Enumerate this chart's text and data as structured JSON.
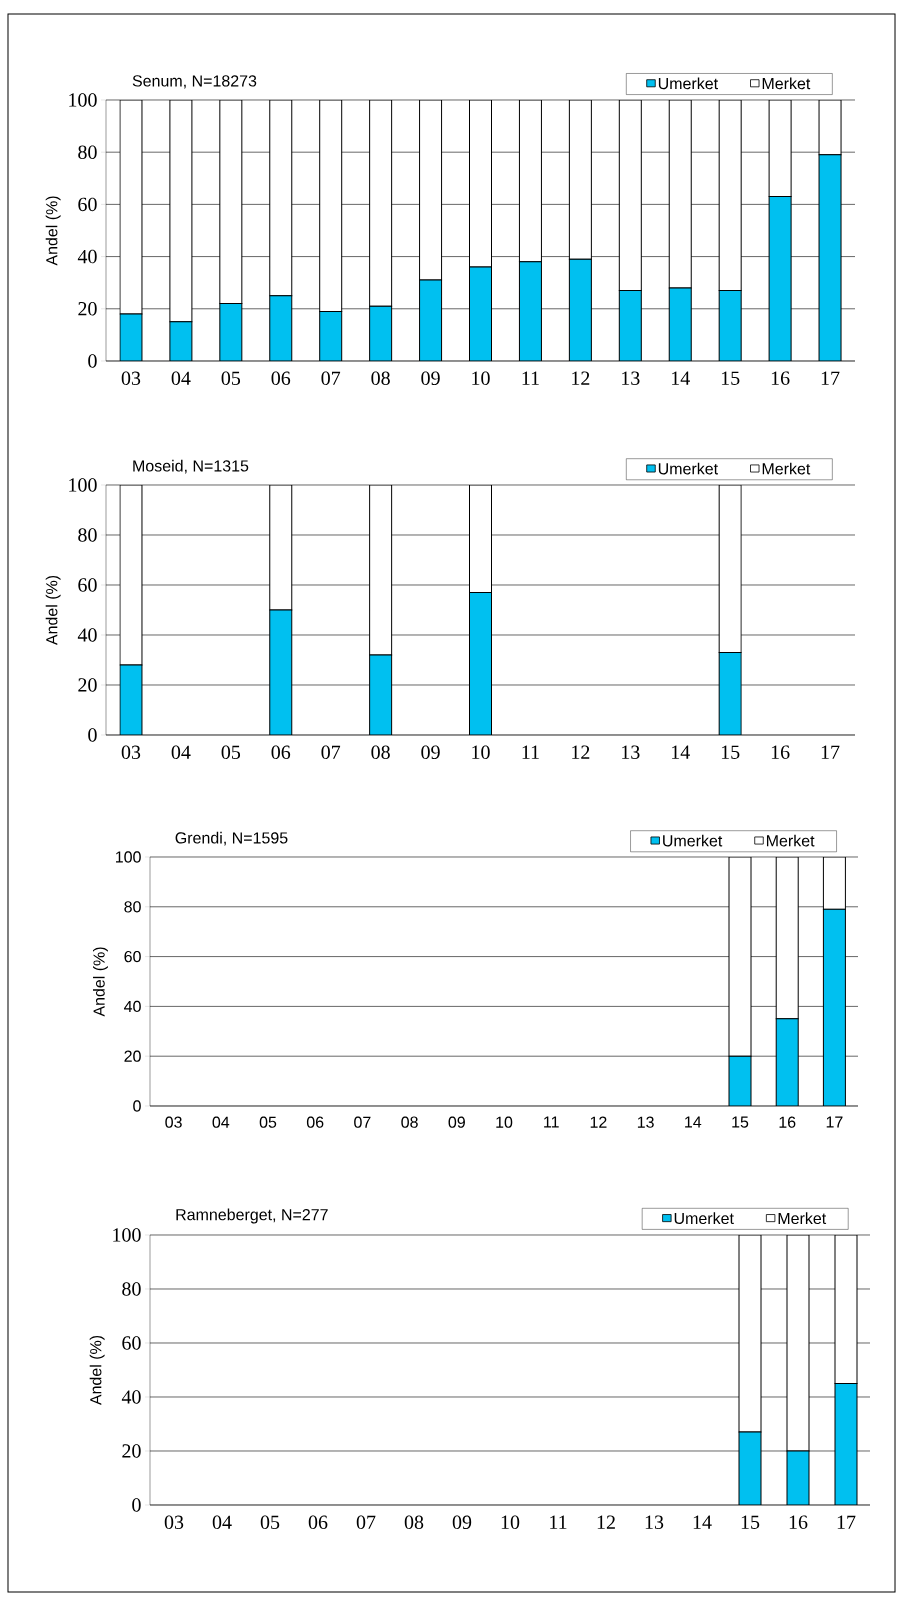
{
  "chart_data": [
    {
      "type": "bar",
      "stacked": true,
      "title": "Senum, N=18273",
      "ylabel": "Andel (%)",
      "categories": [
        "03",
        "04",
        "05",
        "06",
        "07",
        "08",
        "09",
        "10",
        "11",
        "12",
        "13",
        "14",
        "15",
        "16",
        "17"
      ],
      "series": [
        {
          "name": "Umerket",
          "color": "#00c0f0",
          "values": [
            18,
            15,
            22,
            25,
            19,
            21,
            31,
            36,
            38,
            39,
            27,
            28,
            27,
            63,
            79
          ]
        },
        {
          "name": "Merket",
          "color": "#ffffff",
          "values": [
            82,
            85,
            78,
            75,
            81,
            79,
            69,
            64,
            62,
            61,
            73,
            72,
            73,
            37,
            21
          ]
        }
      ],
      "ylim": [
        0,
        100
      ],
      "yticks": [
        0,
        20,
        40,
        60,
        80,
        100
      ],
      "grid": "y",
      "legend": "top right"
    },
    {
      "type": "bar",
      "stacked": true,
      "title": "Moseid, N=1315",
      "ylabel": "Andel (%)",
      "categories": [
        "03",
        "04",
        "05",
        "06",
        "07",
        "08",
        "09",
        "10",
        "11",
        "12",
        "13",
        "14",
        "15",
        "16",
        "17"
      ],
      "series": [
        {
          "name": "Umerket",
          "color": "#00c0f0",
          "values": [
            28,
            null,
            null,
            50,
            null,
            32,
            null,
            57,
            null,
            null,
            null,
            null,
            33,
            null,
            null
          ]
        },
        {
          "name": "Merket",
          "color": "#ffffff",
          "values": [
            72,
            null,
            null,
            50,
            null,
            68,
            null,
            43,
            null,
            null,
            null,
            null,
            67,
            null,
            null
          ]
        }
      ],
      "ylim": [
        0,
        100
      ],
      "yticks": [
        0,
        20,
        40,
        60,
        80,
        100
      ],
      "grid": "y",
      "legend": "top right"
    },
    {
      "type": "bar",
      "stacked": true,
      "title": "Grendi, N=1595",
      "ylabel": "Andel (%)",
      "categories": [
        "03",
        "04",
        "05",
        "06",
        "07",
        "08",
        "09",
        "10",
        "11",
        "12",
        "13",
        "14",
        "15",
        "16",
        "17"
      ],
      "series": [
        {
          "name": "Umerket",
          "color": "#00c0f0",
          "values": [
            null,
            null,
            null,
            null,
            null,
            null,
            null,
            null,
            null,
            null,
            null,
            null,
            20,
            35,
            79
          ]
        },
        {
          "name": "Merket",
          "color": "#ffffff",
          "values": [
            null,
            null,
            null,
            null,
            null,
            null,
            null,
            null,
            null,
            null,
            null,
            null,
            80,
            65,
            21
          ]
        }
      ],
      "ylim": [
        0,
        100
      ],
      "yticks": [
        0,
        20,
        40,
        60,
        80,
        100
      ],
      "grid": "y",
      "legend": "top right"
    },
    {
      "type": "bar",
      "stacked": true,
      "title": "Ramneberget, N=277",
      "ylabel": "Andel (%)",
      "categories": [
        "03",
        "04",
        "05",
        "06",
        "07",
        "08",
        "09",
        "10",
        "11",
        "12",
        "13",
        "14",
        "15",
        "16",
        "17"
      ],
      "series": [
        {
          "name": "Umerket",
          "color": "#00c0f0",
          "values": [
            null,
            null,
            null,
            null,
            null,
            null,
            null,
            null,
            null,
            null,
            null,
            null,
            27,
            20,
            45
          ]
        },
        {
          "name": "Merket",
          "color": "#ffffff",
          "values": [
            null,
            null,
            null,
            null,
            null,
            null,
            null,
            null,
            null,
            null,
            null,
            null,
            73,
            80,
            55
          ]
        }
      ],
      "ylim": [
        0,
        100
      ],
      "yticks": [
        0,
        20,
        40,
        60,
        80,
        100
      ],
      "grid": "y",
      "legend": "top right"
    }
  ]
}
